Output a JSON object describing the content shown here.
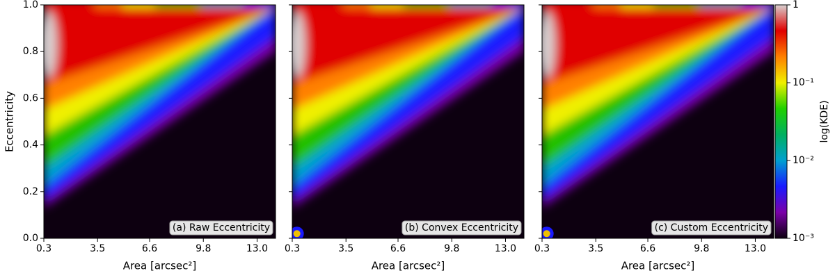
{
  "chart_data": [
    {
      "type": "heatmap",
      "annotation": "(a) Raw Eccentricity",
      "xlabel": "Area [arcsec²]",
      "ylabel": "Eccentricity",
      "xlim": [
        0.3,
        14.1
      ],
      "xticks": [
        0.3,
        3.5,
        6.6,
        9.8,
        {
          "value": 13,
          "label": "13.0"
        }
      ],
      "ylim": [
        0,
        1
      ],
      "yticks": [
        {
          "value": 0,
          "label": "0.0"
        },
        0.2,
        0.4,
        0.6,
        0.8,
        {
          "value": 1,
          "label": "1.0"
        }
      ]
    },
    {
      "type": "heatmap",
      "annotation": "(b) Convex Eccentricity",
      "xlabel": "Area [arcsec²]",
      "xlim": [
        0.3,
        14.1
      ],
      "xticks": [
        0.3,
        3.5,
        6.6,
        9.8,
        {
          "value": 13,
          "label": "13.0"
        }
      ],
      "ylim": [
        0,
        1
      ],
      "yticks": [
        0,
        0.2,
        0.4,
        0.6,
        0.8,
        1
      ]
    },
    {
      "type": "heatmap",
      "annotation": "(c) Custom Eccentricity",
      "xlabel": "Area [arcsec²]",
      "xlim": [
        0.3,
        14.1
      ],
      "xticks": [
        0.3,
        3.5,
        6.6,
        9.8,
        {
          "value": 13,
          "label": "13.0"
        }
      ],
      "ylim": [
        0,
        1
      ],
      "yticks": [
        0,
        0.2,
        0.4,
        0.6,
        0.8,
        1
      ],
      "colorbar": {
        "label": "log(KDE)",
        "scale": "log",
        "lim": [
          0.001,
          1
        ],
        "ticks": [
          {
            "value": 0.001,
            "label": "10⁻³"
          },
          {
            "value": 0.01,
            "label": "10⁻²"
          },
          {
            "value": 0.1,
            "label": "10⁻¹"
          },
          1
        ],
        "colors": [
          "#0d0010",
          "#7a00a8",
          "#1a1aff",
          "#00a0d0",
          "#00b060",
          "#20d000",
          "#f0f000",
          "#ff8000",
          "#e00000",
          "#d8d0d0"
        ]
      }
    }
  ]
}
